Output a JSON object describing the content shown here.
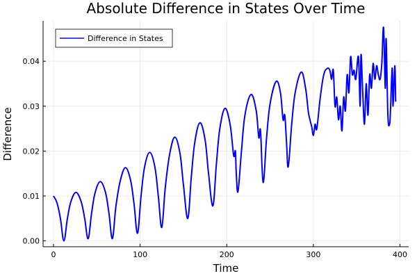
{
  "chart_data": {
    "type": "line",
    "title": "Absolute Difference in States Over Time",
    "xlabel": "Time",
    "ylabel": "Difference",
    "xlim": [
      -12,
      410
    ],
    "ylim": [
      -0.0013,
      0.049
    ],
    "xticks": [
      0,
      100,
      200,
      300,
      400
    ],
    "xtick_labels": [
      "0",
      "100",
      "200",
      "300",
      "400"
    ],
    "yticks": [
      0,
      0.01,
      0.02,
      0.03,
      0.04
    ],
    "ytick_labels": [
      "0.00",
      "0.01",
      "0.02",
      "0.03",
      "0.04"
    ],
    "grid": true,
    "legend": {
      "position": "top-left",
      "entries": [
        "Difference in States"
      ]
    },
    "series": [
      {
        "name": "Difference in States",
        "color": "#0000ff",
        "x": [
          0,
          4,
          8,
          12,
          16,
          20,
          26,
          32,
          36,
          40,
          44,
          48,
          54,
          60,
          64,
          68,
          72,
          77,
          83,
          89,
          93,
          97,
          101,
          105,
          111,
          117,
          121,
          125,
          129,
          134,
          140,
          146,
          150,
          155,
          159,
          163,
          169,
          175,
          179,
          184,
          188,
          192,
          198,
          204,
          208,
          210,
          211,
          213,
          217,
          221,
          228,
          234,
          237,
          239,
          242,
          246,
          250,
          257,
          262,
          265,
          267,
          269,
          271,
          275,
          279,
          286,
          291,
          294,
          296,
          298,
          300,
          302,
          304,
          308,
          312,
          316,
          319,
          321,
          323,
          325,
          327,
          329,
          331,
          333,
          335,
          337,
          339,
          341,
          343,
          345,
          347,
          349,
          352,
          354,
          355,
          357,
          359,
          361,
          363,
          365,
          367,
          369,
          371,
          373,
          375,
          377,
          379,
          381,
          383,
          384,
          386,
          388,
          389,
          391,
          392,
          394,
          395
        ],
        "y": [
          0.01,
          0.0085,
          0.005,
          0.0,
          0.0049,
          0.0087,
          0.0108,
          0.0087,
          0.005,
          0.0005,
          0.0062,
          0.0107,
          0.0132,
          0.0108,
          0.0062,
          0.0005,
          0.0076,
          0.0133,
          0.0163,
          0.0135,
          0.0082,
          0.0017,
          0.0098,
          0.0163,
          0.0197,
          0.0165,
          0.01,
          0.003,
          0.0118,
          0.0192,
          0.0231,
          0.0195,
          0.0125,
          0.005,
          0.014,
          0.0218,
          0.0263,
          0.0225,
          0.015,
          0.0078,
          0.017,
          0.025,
          0.0295,
          0.0258,
          0.019,
          0.02,
          0.015,
          0.011,
          0.02,
          0.028,
          0.0326,
          0.029,
          0.023,
          0.0245,
          0.013,
          0.023,
          0.0305,
          0.0355,
          0.033,
          0.027,
          0.028,
          0.022,
          0.0165,
          0.026,
          0.033,
          0.0376,
          0.034,
          0.029,
          0.027,
          0.0255,
          0.0235,
          0.026,
          0.025,
          0.032,
          0.037,
          0.0384,
          0.038,
          0.036,
          0.038,
          0.03,
          0.032,
          0.027,
          0.03,
          0.0245,
          0.032,
          0.029,
          0.037,
          0.033,
          0.041,
          0.037,
          0.038,
          0.036,
          0.041,
          0.03,
          0.0415,
          0.033,
          0.026,
          0.035,
          0.028,
          0.037,
          0.034,
          0.0395,
          0.036,
          0.039,
          0.037,
          0.036,
          0.0395,
          0.0475,
          0.034,
          0.045,
          0.028,
          0.026,
          0.029,
          0.0385,
          0.03,
          0.039,
          0.031
        ]
      }
    ]
  }
}
